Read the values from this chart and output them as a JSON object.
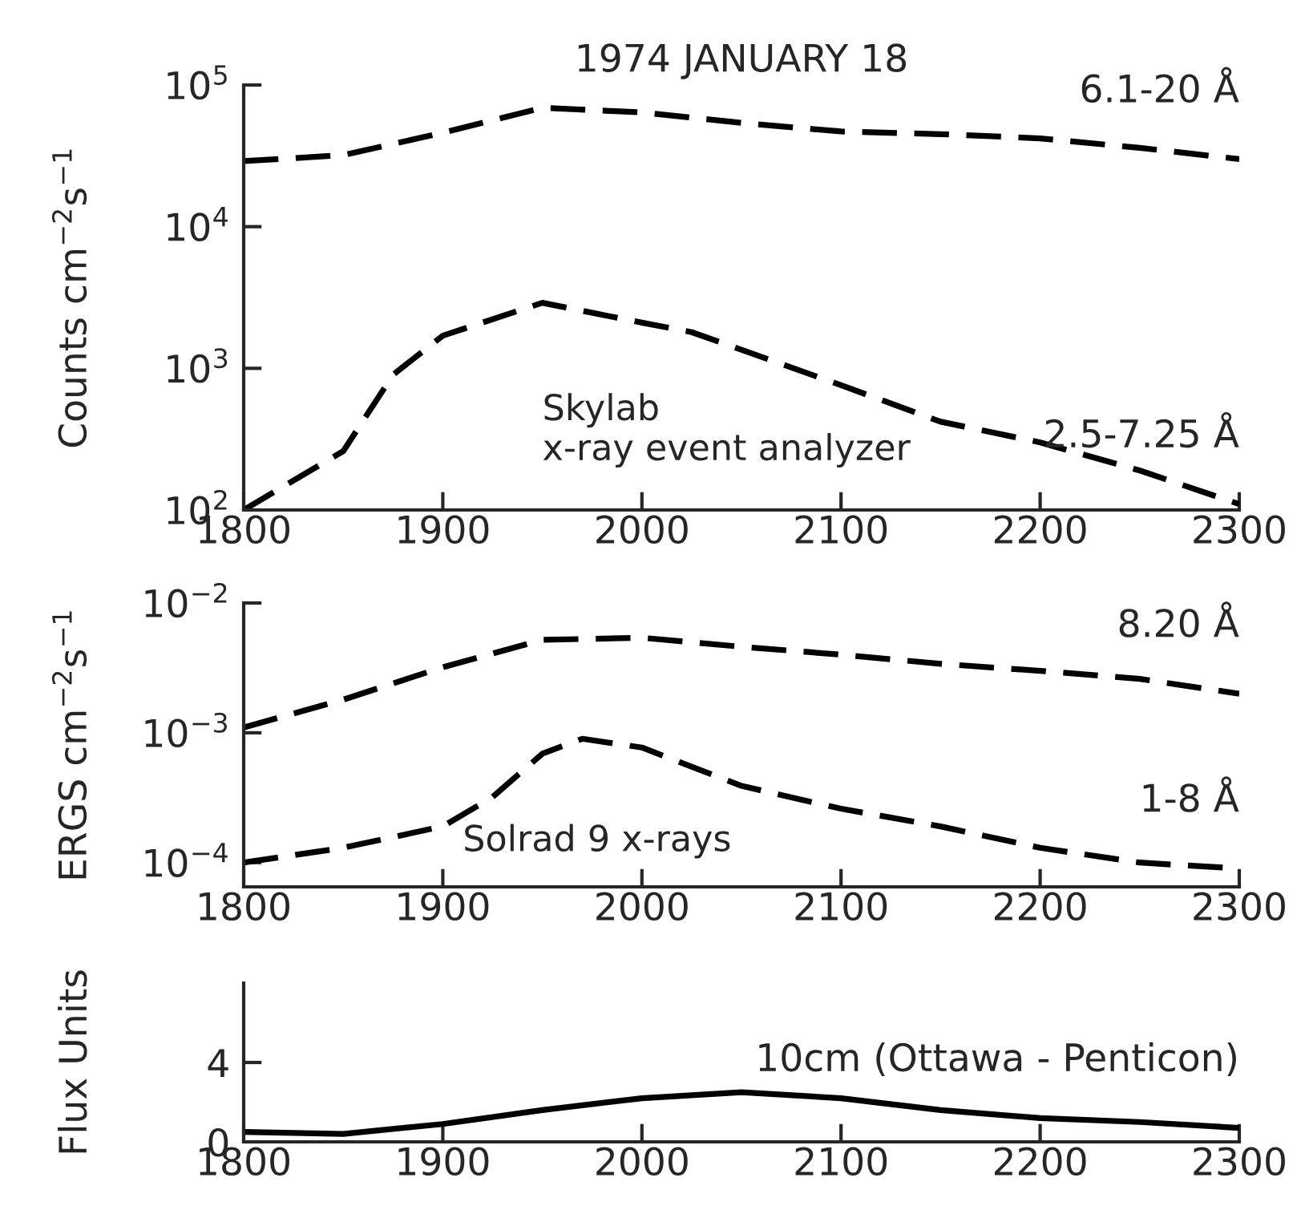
{
  "chart_data": [
    {
      "type": "line",
      "title": "1974 JANUARY 18",
      "ylabel": "Counts cm$^{−2}$s$^{−1}$",
      "log": "y",
      "xlim": [
        1800,
        2300
      ],
      "xticks": [
        1800,
        1900,
        2000,
        2100,
        2200,
        2300
      ],
      "ylim": [
        100,
        100000
      ],
      "yticks": [
        {
          "value": 100,
          "label": "10$^{2}$"
        },
        {
          "value": 1000,
          "label": "10$^{3}$"
        },
        {
          "value": 10000,
          "label": "10$^{4}$"
        },
        {
          "value": 100000,
          "label": "10$^{5}$"
        }
      ],
      "grid": false,
      "legend": false,
      "line_style": "dashed",
      "marker": "none",
      "annotations": [
        "Skylab\nx-ray event analyzer"
      ],
      "series": [
        {
          "name": "6.1-20 Å",
          "color": "#000000",
          "x": [
            1800,
            1850,
            1900,
            1950,
            2000,
            2050,
            2100,
            2150,
            2200,
            2250,
            2300
          ],
          "values": [
            29000,
            32000,
            46000,
            69000,
            64000,
            54000,
            47000,
            45000,
            42000,
            36000,
            30000
          ]
        },
        {
          "name": "2.5-7.25 Å",
          "color": "#000000",
          "x": [
            1800,
            1850,
            1875,
            1900,
            1950,
            2000,
            2025,
            2100,
            2150,
            2200,
            2250,
            2300
          ],
          "values": [
            100,
            260,
            900,
            1700,
            2900,
            2100,
            1800,
            760,
            420,
            300,
            190,
            110
          ]
        }
      ]
    },
    {
      "type": "line",
      "ylabel": "ERGS cm$^{−2}$s$^{−1}$",
      "log": "y",
      "xlim": [
        1800,
        2300
      ],
      "xticks": [
        1800,
        1900,
        2000,
        2100,
        2200,
        2300
      ],
      "ylim": [
        6.5e-05,
        0.01
      ],
      "yticks": [
        {
          "value": 0.0001,
          "label": "10$^{−4}$"
        },
        {
          "value": 0.001,
          "label": "10$^{−3}$"
        },
        {
          "value": 0.01,
          "label": "10$^{−2}$"
        }
      ],
      "grid": false,
      "legend": false,
      "line_style": "dashed",
      "marker": "none",
      "annotations": [
        "Solrad 9 x-rays"
      ],
      "series": [
        {
          "name": "8.20 Å",
          "color": "#000000",
          "x": [
            1800,
            1850,
            1900,
            1950,
            2000,
            2050,
            2100,
            2150,
            2200,
            2250,
            2300
          ],
          "values": [
            0.0011,
            0.0018,
            0.0032,
            0.0052,
            0.0054,
            0.0046,
            0.004,
            0.0034,
            0.003,
            0.0026,
            0.002
          ]
        },
        {
          "name": "1-8 Å",
          "color": "#000000",
          "x": [
            1800,
            1850,
            1900,
            1925,
            1950,
            1970,
            2000,
            2050,
            2100,
            2150,
            2200,
            2250,
            2300
          ],
          "values": [
            0.0001,
            0.00013,
            0.00019,
            0.00032,
            0.00069,
            0.0009,
            0.00077,
            0.00039,
            0.00026,
            0.00019,
            0.00013,
            0.0001,
            9e-05
          ]
        }
      ]
    },
    {
      "type": "line",
      "ylabel": "Flux Units",
      "xlim": [
        1800,
        2300
      ],
      "xticks": [
        1800,
        1900,
        2000,
        2100,
        2200,
        2300
      ],
      "ylim": [
        0,
        8
      ],
      "yticks": [
        0,
        4
      ],
      "grid": false,
      "legend": false,
      "line_style": "solid",
      "marker": "none",
      "series": [
        {
          "name": "10cm (Ottawa - Penticon)",
          "color": "#000000",
          "x": [
            1800,
            1850,
            1900,
            1950,
            2000,
            2050,
            2100,
            2150,
            2200,
            2250,
            2300
          ],
          "values": [
            0.5,
            0.4,
            0.9,
            1.6,
            2.2,
            2.5,
            2.2,
            1.6,
            1.2,
            1.0,
            0.7
          ]
        }
      ]
    }
  ]
}
